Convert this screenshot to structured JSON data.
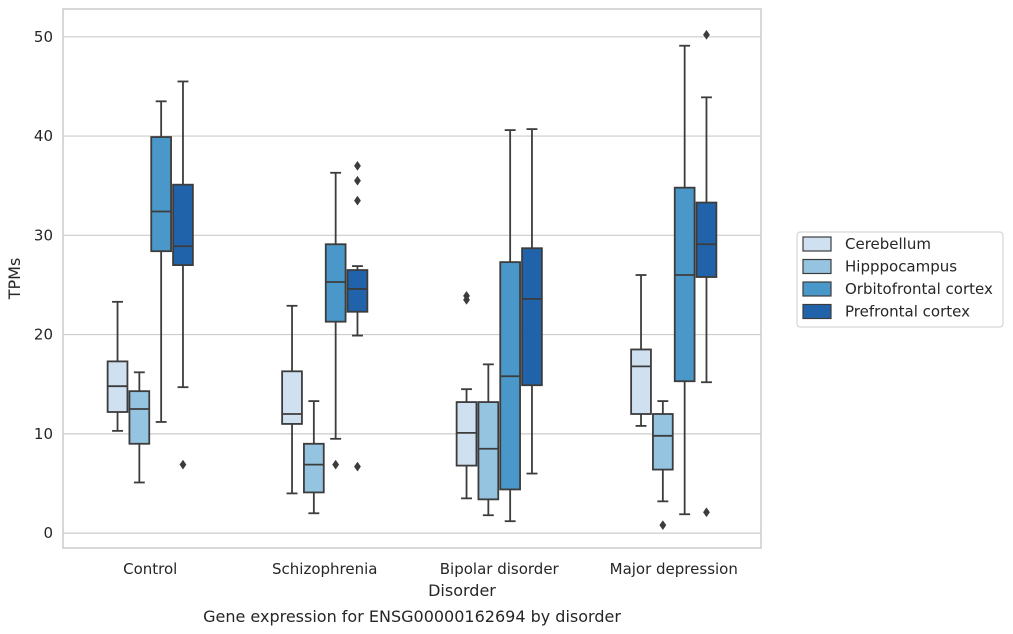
{
  "chart_data": {
    "type": "box",
    "caption": "Gene expression for ENSG00000162694 by disorder",
    "xlabel": "Disorder",
    "ylabel": "TPMs",
    "ylim": [
      -1.5,
      52.8
    ],
    "yticks": [
      0,
      10,
      20,
      30,
      40,
      50
    ],
    "grid": "horizontal",
    "legend_position": "outside-right",
    "categories": [
      "Control",
      "Schizophrenia",
      "Bipolar disorder",
      "Major depression"
    ],
    "series": [
      {
        "name": "Cerebellum",
        "color": "#cfe0f1",
        "boxes": [
          {
            "whislo": 10.3,
            "q1": 12.2,
            "med": 14.8,
            "q3": 17.3,
            "whishi": 23.3,
            "fliers": []
          },
          {
            "whislo": 4.0,
            "q1": 11.0,
            "med": 12.0,
            "q3": 16.3,
            "whishi": 22.9,
            "fliers": []
          },
          {
            "whislo": 3.5,
            "q1": 6.8,
            "med": 10.1,
            "q3": 13.2,
            "whishi": 14.5,
            "fliers": [
              23.5,
              23.9
            ]
          },
          {
            "whislo": 10.8,
            "q1": 12.0,
            "med": 16.8,
            "q3": 18.5,
            "whishi": 26.0,
            "fliers": []
          }
        ]
      },
      {
        "name": "Hipppocampus",
        "color": "#94c4df",
        "boxes": [
          {
            "whislo": 5.1,
            "q1": 9.0,
            "med": 12.5,
            "q3": 14.3,
            "whishi": 16.2,
            "fliers": []
          },
          {
            "whislo": 2.0,
            "q1": 4.1,
            "med": 6.9,
            "q3": 9.0,
            "whishi": 13.3,
            "fliers": []
          },
          {
            "whislo": 1.8,
            "q1": 3.4,
            "med": 8.5,
            "q3": 13.2,
            "whishi": 17.0,
            "fliers": []
          },
          {
            "whislo": 3.2,
            "q1": 6.4,
            "med": 9.8,
            "q3": 12.0,
            "whishi": 13.3,
            "fliers": [
              0.8
            ]
          }
        ]
      },
      {
        "name": "Orbitofrontal cortex",
        "color": "#4a98c9",
        "boxes": [
          {
            "whislo": 11.2,
            "q1": 28.4,
            "med": 32.4,
            "q3": 39.9,
            "whishi": 43.5,
            "fliers": []
          },
          {
            "whislo": 9.5,
            "q1": 21.3,
            "med": 25.3,
            "q3": 29.1,
            "whishi": 36.3,
            "fliers": [
              6.9
            ]
          },
          {
            "whislo": 1.2,
            "q1": 4.4,
            "med": 15.8,
            "q3": 27.3,
            "whishi": 40.6,
            "fliers": []
          },
          {
            "whislo": 1.9,
            "q1": 15.3,
            "med": 26.0,
            "q3": 34.8,
            "whishi": 49.1,
            "fliers": []
          }
        ]
      },
      {
        "name": "Prefrontal cortex",
        "color": "#2163aa",
        "boxes": [
          {
            "whislo": 14.7,
            "q1": 27.0,
            "med": 28.9,
            "q3": 35.1,
            "whishi": 45.5,
            "fliers": [
              6.9
            ]
          },
          {
            "whislo": 19.9,
            "q1": 22.3,
            "med": 24.6,
            "q3": 26.5,
            "whishi": 26.9,
            "fliers": [
              33.5,
              35.5,
              37.0,
              6.7
            ]
          },
          {
            "whislo": 6.0,
            "q1": 14.9,
            "med": 23.6,
            "q3": 28.7,
            "whishi": 40.7,
            "fliers": []
          },
          {
            "whislo": 15.2,
            "q1": 25.8,
            "med": 29.1,
            "q3": 33.3,
            "whishi": 43.9,
            "fliers": [
              50.2,
              2.1
            ]
          }
        ]
      }
    ]
  }
}
